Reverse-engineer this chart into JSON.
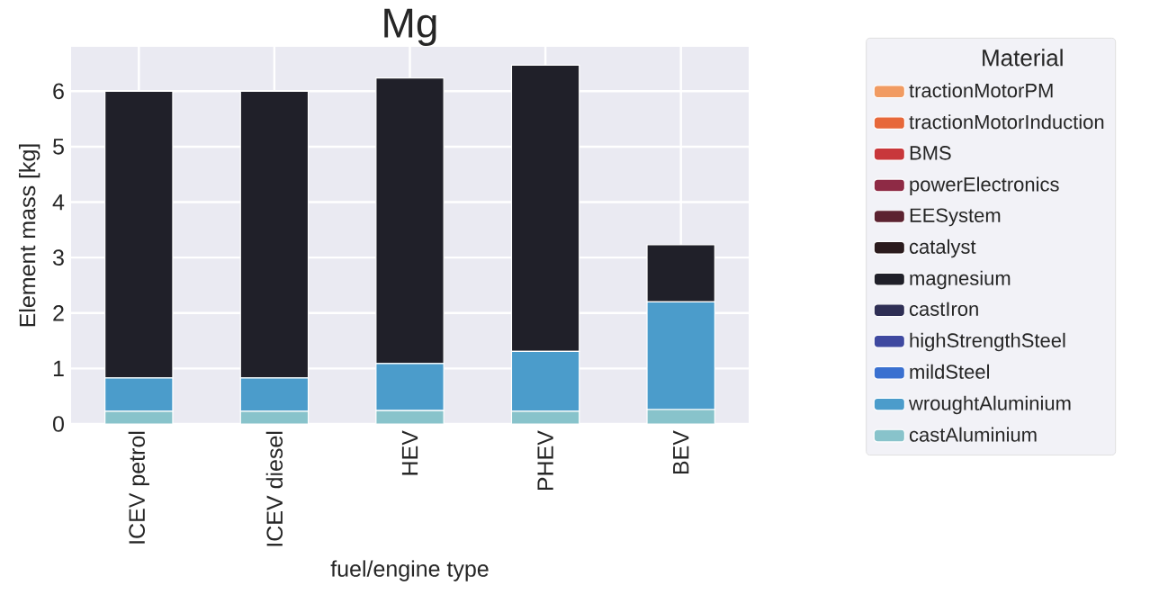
{
  "chart_data": {
    "type": "bar",
    "title": "Mg",
    "xlabel": "fuel/engine type",
    "ylabel": "Element mass [kg]",
    "legend_title": "Material",
    "categories": [
      "ICEV petrol",
      "ICEV diesel",
      "HEV",
      "PHEV",
      "BEV"
    ],
    "stacked": true,
    "grid": true,
    "legend": "right",
    "ylim": [
      0,
      6.8
    ],
    "yticks": [
      0,
      1,
      2,
      3,
      4,
      5,
      6
    ],
    "series": [
      {
        "name": "castAluminium",
        "color": "#88c3cb",
        "values": [
          0.23,
          0.23,
          0.24,
          0.23,
          0.26
        ]
      },
      {
        "name": "wroughtAluminium",
        "color": "#4b9ccb",
        "values": [
          0.6,
          0.6,
          0.85,
          1.08,
          1.94
        ]
      },
      {
        "name": "mildSteel",
        "color": "#3a70d0",
        "values": [
          0,
          0,
          0,
          0,
          0
        ]
      },
      {
        "name": "highStrengthSteel",
        "color": "#3f49a0",
        "values": [
          0,
          0,
          0,
          0,
          0
        ]
      },
      {
        "name": "castIron",
        "color": "#2f2f55",
        "values": [
          0,
          0,
          0,
          0,
          0
        ]
      },
      {
        "name": "magnesium",
        "color": "#202029",
        "values": [
          5.17,
          5.17,
          5.15,
          5.16,
          1.03
        ]
      },
      {
        "name": "catalyst",
        "color": "#2b1b1d",
        "values": [
          0,
          0,
          0,
          0,
          0
        ]
      },
      {
        "name": "EESystem",
        "color": "#5c2230",
        "values": [
          0,
          0,
          0,
          0,
          0
        ]
      },
      {
        "name": "powerElectronics",
        "color": "#8e2a45",
        "values": [
          0,
          0,
          0,
          0,
          0
        ]
      },
      {
        "name": "BMS",
        "color": "#c8373b",
        "values": [
          0,
          0,
          0,
          0,
          0
        ]
      },
      {
        "name": "tractionMotorInduction",
        "color": "#e7683a",
        "values": [
          0,
          0,
          0,
          0,
          0
        ]
      },
      {
        "name": "tractionMotorPM",
        "color": "#f19b62",
        "values": [
          0,
          0,
          0,
          0,
          0
        ]
      }
    ]
  }
}
